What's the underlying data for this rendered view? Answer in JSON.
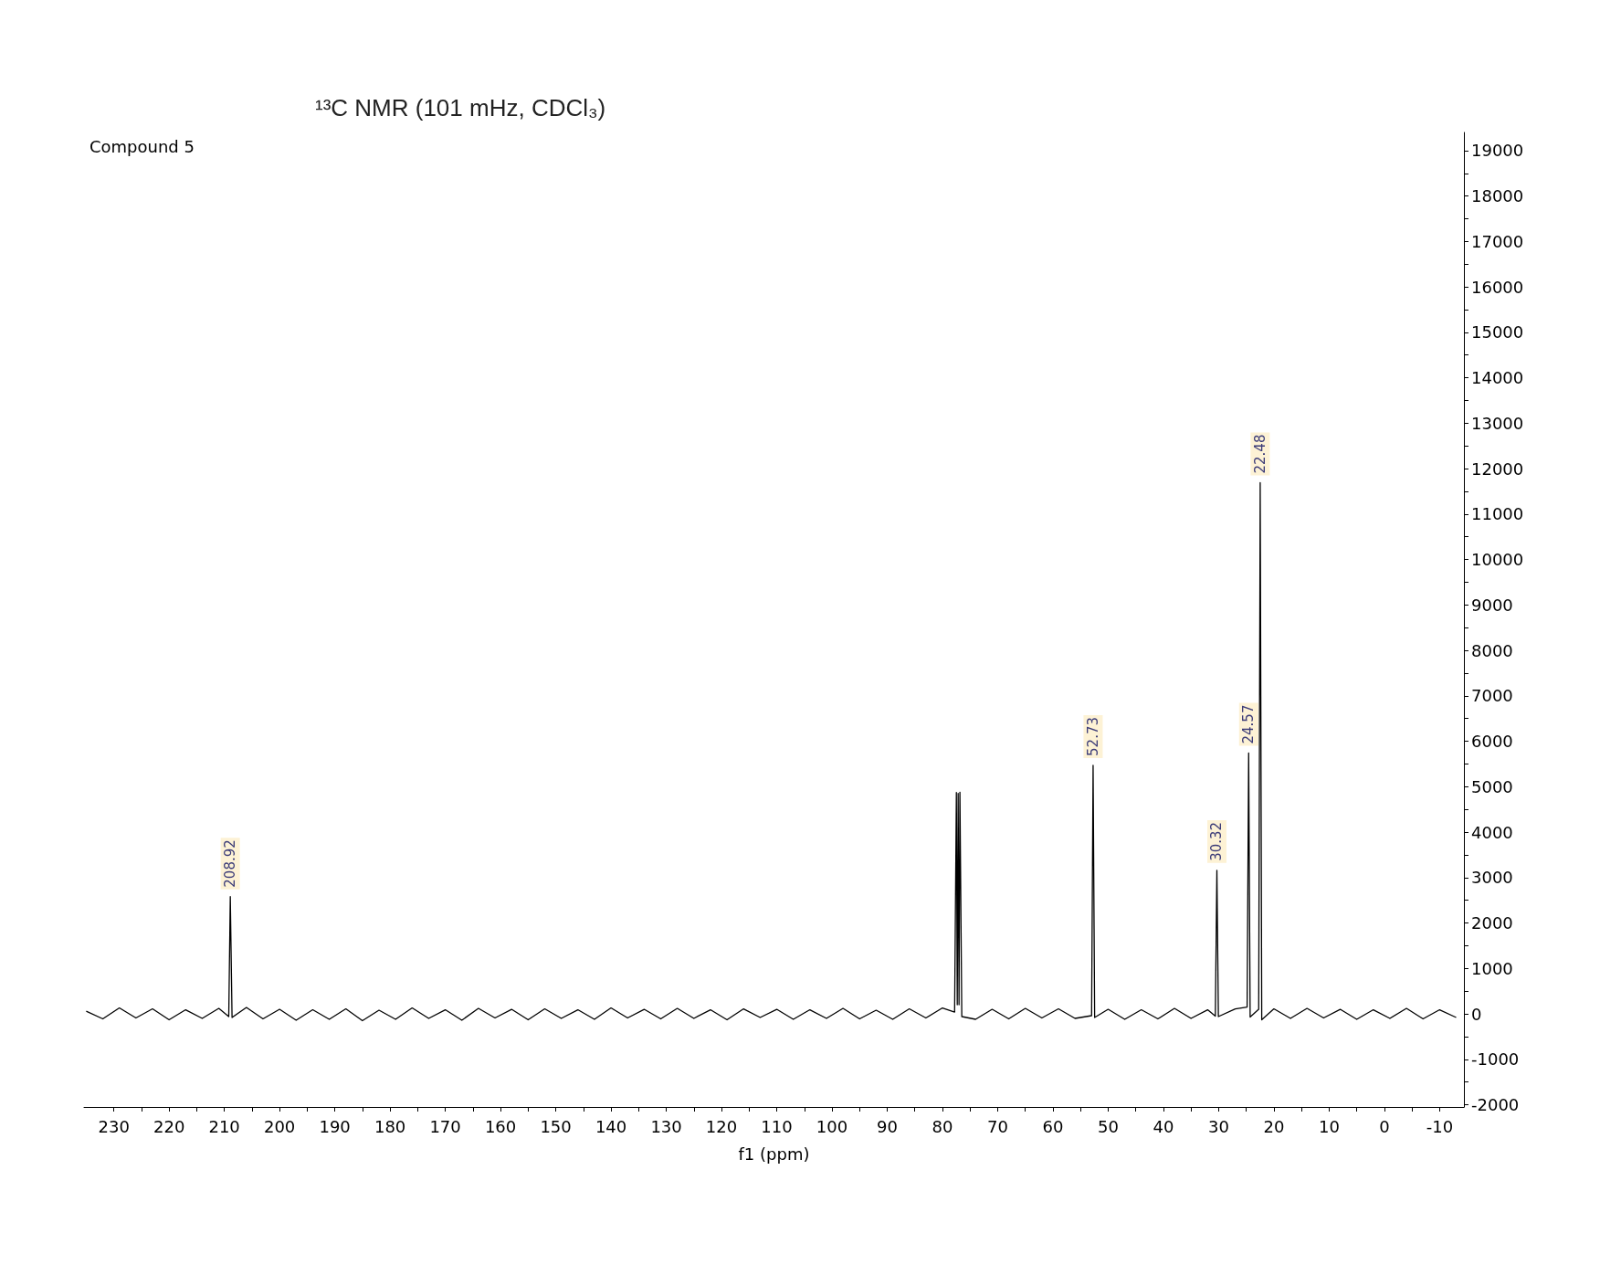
{
  "chart_data": {
    "type": "line",
    "title": "¹³C NMR (101 mHz, CDCl₃)",
    "subtitle": "Compound 5",
    "xlabel": "f1 (ppm)",
    "x": [
      235,
      232,
      229,
      226,
      223,
      220,
      217,
      214,
      211,
      209.2,
      208.92,
      208.6,
      206,
      203,
      200,
      197,
      194,
      191,
      188,
      185,
      182,
      179,
      176,
      173,
      170,
      167,
      164,
      161,
      158,
      155,
      152,
      149,
      146,
      143,
      140,
      137,
      134,
      131,
      128,
      125,
      122,
      119,
      116,
      113,
      110,
      107,
      104,
      101,
      98,
      95,
      92,
      89,
      86,
      83,
      80,
      77.8,
      77.48,
      77.32,
      77.16,
      77.0,
      76.84,
      76.5,
      74,
      71,
      68,
      65,
      62,
      59,
      56,
      53.0,
      52.73,
      52.45,
      50,
      47,
      44,
      41,
      38,
      35,
      32,
      30.6,
      30.32,
      30.05,
      27,
      24.85,
      24.57,
      24.3,
      22.75,
      22.48,
      22.2,
      20,
      17,
      14,
      11,
      8,
      5,
      2,
      -1,
      -4,
      -7,
      -10,
      -13
    ],
    "series": [
      {
        "color": "#000000",
        "values": [
          60,
          -110,
          130,
          -90,
          110,
          -130,
          90,
          -100,
          120,
          -60,
          2580,
          -80,
          140,
          -110,
          100,
          -140,
          90,
          -120,
          110,
          -150,
          80,
          -120,
          130,
          -100,
          90,
          -140,
          120,
          -90,
          100,
          -130,
          110,
          -100,
          90,
          -120,
          130,
          -90,
          100,
          -110,
          120,
          -100,
          90,
          -130,
          110,
          -80,
          100,
          -120,
          90,
          -100,
          120,
          -110,
          80,
          -120,
          110,
          -90,
          130,
          40,
          4870,
          200,
          4850,
          200,
          4880,
          -60,
          -120,
          100,
          -110,
          120,
          -90,
          110,
          -100,
          -40,
          5470,
          -80,
          100,
          -120,
          90,
          -110,
          120,
          -100,
          90,
          -50,
          3160,
          -60,
          110,
          150,
          5740,
          -70,
          100,
          11690,
          -130,
          110,
          -100,
          120,
          -90,
          100,
          -120,
          90,
          -100,
          120,
          -110,
          90,
          -80
        ]
      }
    ],
    "xlim": [
      235.4,
      -14.4
    ],
    "ylim": [
      -2050,
      19400
    ],
    "xticks": [
      230,
      {
        "value": 225,
        "label": null
      },
      220,
      {
        "value": 215,
        "label": null
      },
      210,
      {
        "value": 205,
        "label": null
      },
      200,
      {
        "value": 195,
        "label": null
      },
      190,
      {
        "value": 185,
        "label": null
      },
      180,
      {
        "value": 175,
        "label": null
      },
      170,
      {
        "value": 165,
        "label": null
      },
      160,
      {
        "value": 155,
        "label": null
      },
      150,
      {
        "value": 145,
        "label": null
      },
      140,
      {
        "value": 135,
        "label": null
      },
      130,
      {
        "value": 125,
        "label": null
      },
      120,
      {
        "value": 115,
        "label": null
      },
      110,
      {
        "value": 105,
        "label": null
      },
      100,
      {
        "value": 95,
        "label": null
      },
      90,
      {
        "value": 85,
        "label": null
      },
      80,
      {
        "value": 75,
        "label": null
      },
      70,
      {
        "value": 65,
        "label": null
      },
      60,
      {
        "value": 55,
        "label": null
      },
      50,
      {
        "value": 45,
        "label": null
      },
      40,
      {
        "value": 35,
        "label": null
      },
      30,
      {
        "value": 25,
        "label": null
      },
      20,
      {
        "value": 15,
        "label": null
      },
      10,
      {
        "value": 5,
        "label": null
      },
      0,
      {
        "value": -5,
        "label": null
      },
      -10
    ],
    "yticks": [
      -2000,
      {
        "value": -1500,
        "label": null
      },
      -1000,
      {
        "value": -500,
        "label": null
      },
      0,
      {
        "value": 500,
        "label": null
      },
      1000,
      {
        "value": 1500,
        "label": null
      },
      2000,
      {
        "value": 2500,
        "label": null
      },
      3000,
      {
        "value": 3500,
        "label": null
      },
      4000,
      {
        "value": 4500,
        "label": null
      },
      5000,
      {
        "value": 5500,
        "label": null
      },
      6000,
      {
        "value": 6500,
        "label": null
      },
      7000,
      {
        "value": 7500,
        "label": null
      },
      8000,
      {
        "value": 8500,
        "label": null
      },
      9000,
      {
        "value": 9500,
        "label": null
      },
      10000,
      {
        "value": 10500,
        "label": null
      },
      11000,
      {
        "value": 11500,
        "label": null
      },
      12000,
      {
        "value": 12500,
        "label": null
      },
      13000,
      {
        "value": 13500,
        "label": null
      },
      14000,
      {
        "value": 14500,
        "label": null
      },
      15000,
      {
        "value": 15500,
        "label": null
      },
      16000,
      {
        "value": 16500,
        "label": null
      },
      17000,
      {
        "value": 17500,
        "label": null
      },
      18000,
      {
        "value": 18500,
        "label": null
      },
      19000
    ],
    "annotations": [
      {
        "text": "208.92",
        "x": 208.92,
        "y": 2580
      },
      {
        "text": "52.73",
        "x": 52.73,
        "y": 5470
      },
      {
        "text": "30.32",
        "x": 30.32,
        "y": 3160
      },
      {
        "text": "24.57",
        "x": 24.57,
        "y": 5740
      },
      {
        "text": "22.48",
        "x": 22.48,
        "y": 11690
      }
    ],
    "marker": "none"
  }
}
